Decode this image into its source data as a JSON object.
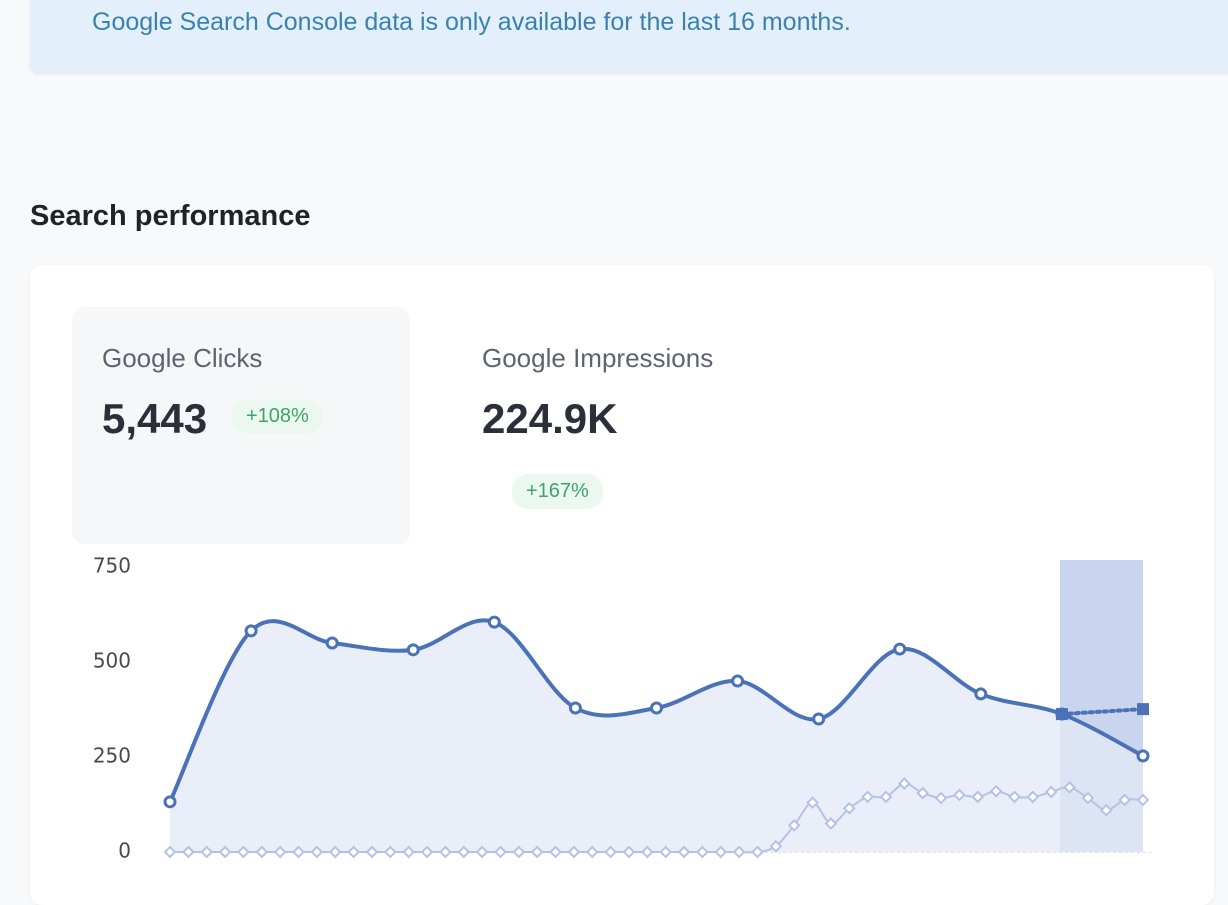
{
  "notice": "Google Search Console data is only available for the last 16 months.",
  "section_title": "Search performance",
  "metrics": [
    {
      "label": "Google Clicks",
      "value": "5,443",
      "change": "+108%"
    },
    {
      "label": "Google Impressions",
      "value": "224.9K",
      "change": "+167%"
    }
  ],
  "chart_data": {
    "type": "line",
    "ylim": [
      0,
      750
    ],
    "yticks": [
      0,
      250,
      500,
      750
    ],
    "series": [
      {
        "color": "#4a72b8",
        "style": "solid",
        "marker": "circle",
        "area": "#e3e8f5",
        "values": [
          132,
          582,
          550,
          532,
          605,
          379,
          379,
          450,
          350,
          534,
          416,
          363,
          253
        ]
      },
      {
        "color": "#4a72b8",
        "style": "dotted",
        "marker": "square",
        "values": [
          null,
          null,
          null,
          null,
          null,
          null,
          null,
          null,
          null,
          null,
          null,
          363,
          376
        ]
      },
      {
        "color": "#b3c2e6",
        "style": "solid",
        "marker": "diamond",
        "values": [
          0,
          0,
          0,
          0,
          0,
          0,
          0,
          0,
          0,
          0,
          0,
          0,
          0,
          0,
          0,
          0,
          0,
          0,
          0,
          0,
          0,
          0,
          0,
          0,
          0,
          0,
          0,
          0,
          0,
          0,
          0,
          0,
          0,
          15,
          70,
          130,
          75,
          115,
          145,
          145,
          180,
          155,
          142,
          150,
          145,
          160,
          145,
          145,
          158,
          170,
          142,
          110,
          137,
          137
        ]
      }
    ]
  }
}
